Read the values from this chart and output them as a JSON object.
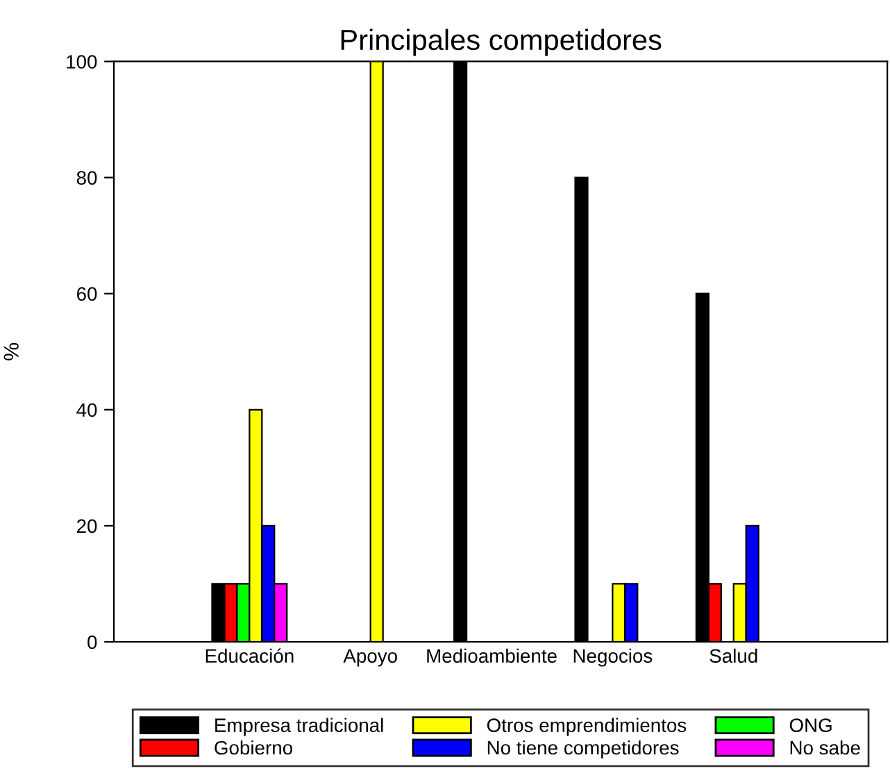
{
  "chart_data": {
    "type": "bar",
    "title": "Principales competidores",
    "ylabel": "%",
    "categories": [
      "Educación",
      "Apoyo",
      "Medioambiente",
      "Negocios",
      "Salud"
    ],
    "series": [
      {
        "name": "Empresa tradicional",
        "color": "#000000",
        "values": [
          10,
          null,
          100,
          80,
          60
        ]
      },
      {
        "name": "Gobierno",
        "color": "#ff0000",
        "values": [
          10,
          null,
          null,
          null,
          10
        ]
      },
      {
        "name": "ONG",
        "color": "#00ff00",
        "values": [
          10,
          null,
          null,
          null,
          null
        ]
      },
      {
        "name": "Otros emprendimientos",
        "color": "#ffff00",
        "values": [
          40,
          100,
          null,
          10,
          10
        ]
      },
      {
        "name": "No tiene competidores",
        "color": "#0000ff",
        "values": [
          20,
          null,
          null,
          10,
          20
        ]
      },
      {
        "name": "No sabe",
        "color": "#ff00ff",
        "values": [
          10,
          null,
          null,
          null,
          null
        ]
      }
    ],
    "ylim": [
      0,
      100
    ],
    "yticks": [
      0,
      20,
      40,
      60,
      80,
      100
    ],
    "grid": false,
    "legend": "bottom"
  }
}
